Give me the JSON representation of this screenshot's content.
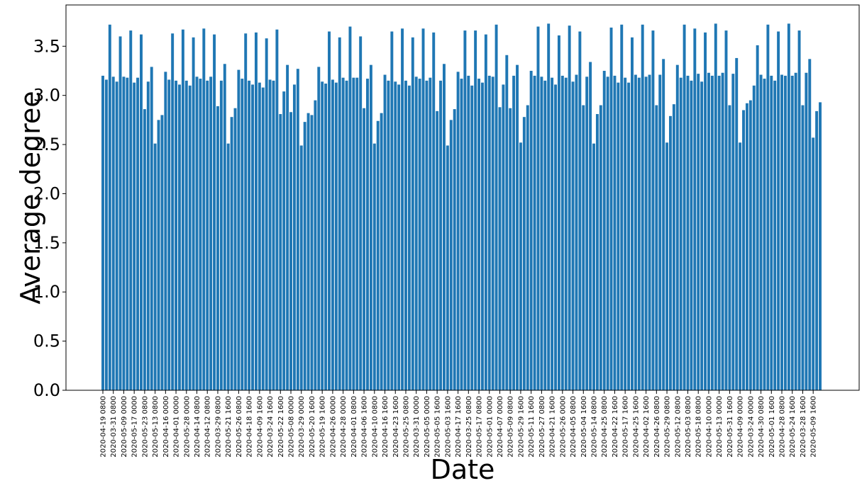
{
  "chart_data": {
    "type": "bar",
    "title": "",
    "xlabel": "Date",
    "ylabel": "Average degree",
    "ylim": [
      0,
      3.92
    ],
    "yticks": [
      "0.0",
      "0.5",
      "1.0",
      "1.5",
      "2.0",
      "2.5",
      "3.0",
      "3.5"
    ],
    "grid": false,
    "bar_color": "#1f77b4",
    "x_tick_labels": [
      "2020-04-19 0800",
      "2020-03-31 0800",
      "2020-05-09 0000",
      "2020-05-17 0000",
      "2020-05-23 0800",
      "2020-05-13 0800",
      "2020-04-16 0000",
      "2020-04-01 0000",
      "2020-05-28 0000",
      "2020-04-14 0800",
      "2020-04-12 0800",
      "2020-03-29 0800",
      "2020-05-21 1600",
      "2020-05-26 0800",
      "2020-04-18 1600",
      "2020-04-09 1600",
      "2020-03-24 1600",
      "2020-05-22 1600",
      "2020-05-08 0000",
      "2020-03-29 0000",
      "2020-05-20 1600",
      "2020-05-19 1600",
      "2020-04-26 0000",
      "2020-04-28 0000",
      "2020-04-01 0800",
      "2020-04-06 1600",
      "2020-04-10 0800",
      "2020-04-16 1600",
      "2020-04-23 1600",
      "2020-05-25 0800",
      "2020-03-31 0000",
      "2020-05-05 0000",
      "2020-05-05 1600",
      "2020-05-03 1600",
      "2020-04-17 1600",
      "2020-03-25 0800",
      "2020-05-17 0800",
      "2020-05-01 0000",
      "2020-04-07 0000",
      "2020-05-09 0800",
      "2020-05-29 1600",
      "2020-05-11 1600",
      "2020-05-27 0800",
      "2020-04-21 1600",
      "2020-05-26 0000",
      "2020-04-05 0800",
      "2020-05-04 1600",
      "2020-05-14 0800",
      "2020-04-25 0800",
      "2020-04-22 1600",
      "2020-05-17 1600",
      "2020-04-25 1600",
      "2020-04-02 1600",
      "2020-04-26 0800",
      "2020-05-29 0800",
      "2020-05-12 0800",
      "2020-05-03 0800",
      "2020-05-18 0800",
      "2020-04-10 0000",
      "2020-05-13 0000",
      "2020-05-31 1600",
      "2020-04-09 0000",
      "2020-03-24 0000",
      "2020-04-30 0800",
      "2020-05-01 1600",
      "2020-04-28 0800",
      "2020-05-24 1600",
      "2020-03-28 1600",
      "2020-05-09 1600"
    ],
    "values": [
      3.2,
      3.16,
      3.72,
      3.19,
      3.14,
      3.6,
      3.19,
      3.18,
      3.66,
      3.13,
      3.18,
      3.62,
      2.86,
      3.14,
      3.29,
      2.51,
      2.75,
      2.8,
      3.24,
      3.16,
      3.63,
      3.15,
      3.11,
      3.67,
      3.15,
      3.1,
      3.59,
      3.19,
      3.17,
      3.68,
      3.15,
      3.19,
      3.62,
      2.89,
      3.15,
      3.32,
      2.51,
      2.78,
      2.87,
      3.26,
      3.17,
      3.63,
      3.15,
      3.11,
      3.64,
      3.13,
      3.08,
      3.58,
      3.16,
      3.15,
      3.67,
      2.81,
      3.04,
      3.31,
      2.83,
      3.11,
      3.27,
      2.49,
      2.73,
      2.82,
      2.8,
      2.95,
      3.29,
      3.14,
      3.12,
      3.65,
      3.16,
      3.13,
      3.59,
      3.18,
      3.15,
      3.7,
      3.18,
      3.18,
      3.6,
      2.87,
      3.17,
      3.31,
      2.51,
      2.74,
      2.82,
      3.21,
      3.15,
      3.65,
      3.14,
      3.11,
      3.68,
      3.15,
      3.1,
      3.59,
      3.19,
      3.17,
      3.68,
      3.15,
      3.18,
      3.64,
      2.84,
      3.15,
      3.32,
      2.49,
      2.75,
      2.86,
      3.24,
      3.17,
      3.66,
      3.2,
      3.1,
      3.66,
      3.17,
      3.13,
      3.62,
      3.2,
      3.19,
      3.72,
      2.88,
      3.11,
      3.41,
      2.87,
      3.2,
      3.31,
      2.52,
      2.78,
      2.9,
      3.25,
      3.2,
      3.7,
      3.19,
      3.15,
      3.73,
      3.18,
      3.11,
      3.61,
      3.2,
      3.18,
      3.71,
      3.14,
      3.21,
      3.65,
      2.9,
      3.19,
      3.34,
      2.51,
      2.81,
      2.9,
      3.25,
      3.19,
      3.69,
      3.2,
      3.13,
      3.72,
      3.18,
      3.13,
      3.59,
      3.21,
      3.18,
      3.72,
      3.19,
      3.21,
      3.66,
      2.9,
      3.21,
      3.37,
      2.52,
      2.79,
      2.91,
      3.31,
      3.18,
      3.72,
      3.2,
      3.15,
      3.68,
      3.22,
      3.14,
      3.64,
      3.23,
      3.2,
      3.73,
      3.2,
      3.23,
      3.66,
      2.9,
      3.22,
      3.38,
      2.52,
      2.85,
      2.92,
      2.95,
      3.1,
      3.51,
      3.21,
      3.17,
      3.72,
      3.2,
      3.15,
      3.65,
      3.21,
      3.2,
      3.73,
      3.2,
      3.23,
      3.66,
      2.9,
      3.23,
      3.37,
      2.57,
      2.84,
      2.93
    ]
  }
}
